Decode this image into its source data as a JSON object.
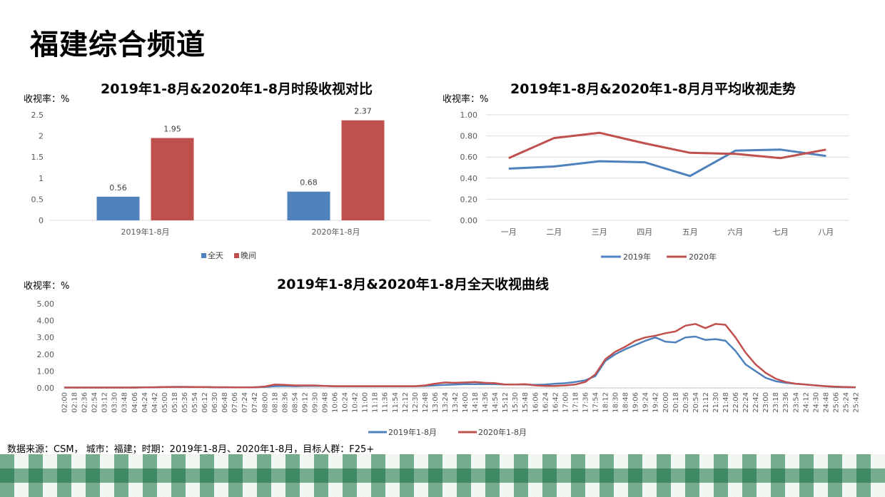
{
  "page_title": "福建综合频道",
  "source_note": "数据来源：CSM， 城市：福建；时期：2019年1-8月、2020年1-8月，目标人群：F25+",
  "colors": {
    "blue": "#4f81bd",
    "red": "#c0504d",
    "grid": "#d9d9d9",
    "plaid": "#1a7a45"
  },
  "charts": {
    "bar": {
      "unit_label": "收视率：%"
    },
    "line": {
      "unit_label": "收视率：%"
    },
    "curve": {
      "unit_label": "收视率：%"
    }
  },
  "chart_data": [
    {
      "id": "bar",
      "type": "bar",
      "title": "2019年1-8月&2020年1-8月时段收视对比",
      "categories": [
        "2019年1-8月",
        "2020年1-8月"
      ],
      "series": [
        {
          "name": "全天",
          "values": [
            0.56,
            0.68
          ],
          "color": "#4f81bd"
        },
        {
          "name": "晚间",
          "values": [
            1.95,
            2.37
          ],
          "color": "#c0504d"
        }
      ],
      "ylim": [
        0,
        2.5
      ],
      "yticks": [
        "0",
        "0.5",
        "1",
        "1.5",
        "2",
        "2.5"
      ],
      "data_labels": [
        "0.56",
        "1.95",
        "0.68",
        "2.37"
      ],
      "grid": false,
      "legend": "bottom"
    },
    {
      "id": "line",
      "type": "line",
      "title": "2019年1-8月&2020年1-8月月平均收视走势",
      "categories": [
        "一月",
        "二月",
        "三月",
        "四月",
        "五月",
        "六月",
        "七月",
        "八月"
      ],
      "series": [
        {
          "name": "2019年",
          "values": [
            0.49,
            0.51,
            0.56,
            0.55,
            0.42,
            0.66,
            0.67,
            0.61
          ],
          "color": "#4f81bd"
        },
        {
          "name": "2020年",
          "values": [
            0.59,
            0.78,
            0.83,
            0.73,
            0.64,
            0.63,
            0.59,
            0.67
          ],
          "color": "#c0504d"
        }
      ],
      "ylim": [
        0,
        1.0
      ],
      "yticks": [
        "0.00",
        "0.20",
        "0.40",
        "0.60",
        "0.80",
        "1.00"
      ],
      "grid": true,
      "legend": "bottom"
    },
    {
      "id": "curve",
      "type": "line",
      "title": "2019年1-8月&2020年1-8月全天收视曲线",
      "x_tick_labels": [
        "02:00",
        "02:18",
        "02:36",
        "02:54",
        "03:12",
        "03:30",
        "03:48",
        "04:06",
        "04:24",
        "04:42",
        "05:00",
        "05:18",
        "05:36",
        "05:54",
        "06:12",
        "06:30",
        "06:48",
        "07:06",
        "07:24",
        "07:42",
        "08:00",
        "08:18",
        "08:36",
        "08:54",
        "09:12",
        "09:30",
        "09:48",
        "10:06",
        "10:24",
        "10:42",
        "11:00",
        "11:18",
        "11:36",
        "11:54",
        "12:12",
        "12:30",
        "12:48",
        "13:06",
        "13:24",
        "13:42",
        "14:00",
        "14:18",
        "14:36",
        "14:54",
        "15:12",
        "15:30",
        "15:48",
        "16:06",
        "16:24",
        "16:42",
        "17:00",
        "17:18",
        "17:36",
        "17:54",
        "18:12",
        "18:30",
        "18:48",
        "19:06",
        "19:24",
        "19:42",
        "20:00",
        "20:18",
        "20:36",
        "20:54",
        "21:12",
        "21:30",
        "21:48",
        "22:06",
        "22:24",
        "22:42",
        "23:00",
        "23:18",
        "23:36",
        "23:54",
        "24:12",
        "24:30",
        "24:48",
        "25:06",
        "25:24",
        "25:42"
      ],
      "series": [
        {
          "name": "2019年1-8月",
          "color": "#4f81bd",
          "values": [
            0.02,
            0.02,
            0.02,
            0.02,
            0.02,
            0.02,
            0.02,
            0.02,
            0.03,
            0.04,
            0.05,
            0.06,
            0.06,
            0.05,
            0.05,
            0.04,
            0.04,
            0.03,
            0.03,
            0.04,
            0.06,
            0.1,
            0.12,
            0.1,
            0.12,
            0.12,
            0.12,
            0.1,
            0.1,
            0.1,
            0.1,
            0.1,
            0.1,
            0.1,
            0.1,
            0.1,
            0.12,
            0.15,
            0.18,
            0.2,
            0.22,
            0.22,
            0.22,
            0.22,
            0.2,
            0.2,
            0.2,
            0.18,
            0.2,
            0.25,
            0.28,
            0.35,
            0.45,
            0.7,
            1.6,
            2.0,
            2.3,
            2.55,
            2.8,
            3.0,
            2.75,
            2.7,
            3.0,
            3.05,
            2.85,
            2.9,
            2.8,
            2.2,
            1.4,
            1.0,
            0.6,
            0.4,
            0.3,
            0.25,
            0.2,
            0.15,
            0.1,
            0.06,
            0.04,
            0.03
          ]
        },
        {
          "name": "2020年1-8月",
          "color": "#c0504d",
          "values": [
            0.02,
            0.02,
            0.02,
            0.02,
            0.02,
            0.02,
            0.02,
            0.02,
            0.03,
            0.04,
            0.05,
            0.06,
            0.06,
            0.05,
            0.05,
            0.04,
            0.04,
            0.03,
            0.03,
            0.04,
            0.08,
            0.2,
            0.18,
            0.15,
            0.15,
            0.15,
            0.12,
            0.1,
            0.1,
            0.1,
            0.1,
            0.1,
            0.1,
            0.1,
            0.1,
            0.1,
            0.15,
            0.25,
            0.32,
            0.3,
            0.32,
            0.35,
            0.3,
            0.28,
            0.2,
            0.2,
            0.22,
            0.15,
            0.12,
            0.12,
            0.15,
            0.2,
            0.35,
            0.8,
            1.7,
            2.15,
            2.45,
            2.8,
            3.0,
            3.1,
            3.25,
            3.35,
            3.7,
            3.8,
            3.55,
            3.8,
            3.75,
            3.0,
            2.1,
            1.4,
            0.9,
            0.55,
            0.35,
            0.25,
            0.2,
            0.15,
            0.1,
            0.07,
            0.05,
            0.04
          ]
        }
      ],
      "ylim": [
        0,
        5.0
      ],
      "yticks": [
        "0.00",
        "1.00",
        "2.00",
        "3.00",
        "4.00",
        "5.00"
      ],
      "grid": false,
      "legend": "bottom"
    }
  ]
}
